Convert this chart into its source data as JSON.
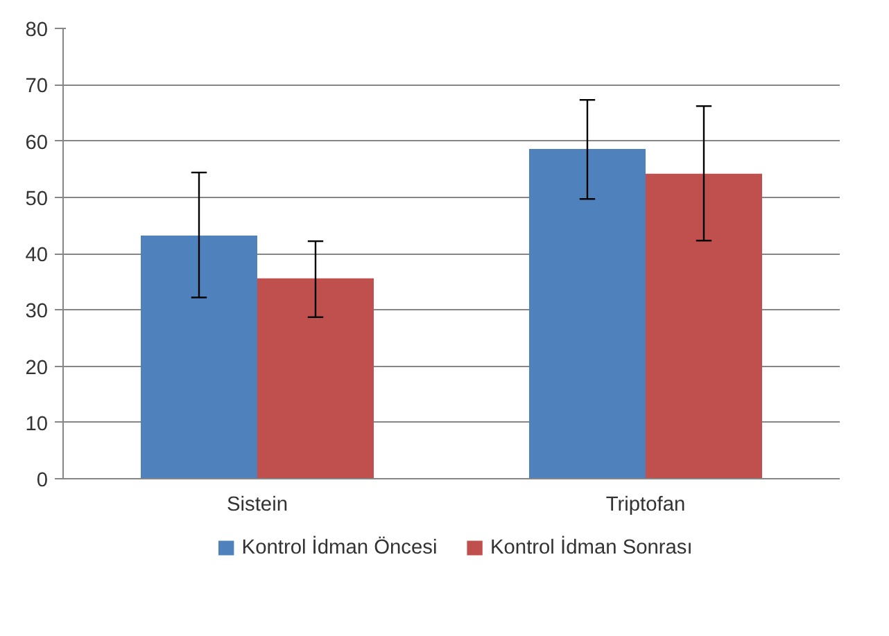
{
  "chart_data": {
    "type": "bar",
    "categories": [
      "Sistein",
      "Triptofan"
    ],
    "series": [
      {
        "name": "Kontrol İdman Öncesi",
        "color": "#4f81bd",
        "values": [
          43.2,
          58.6
        ],
        "errors": [
          [
            32.2,
            54.4
          ],
          [
            49.7,
            67.3
          ]
        ]
      },
      {
        "name": "Kontrol İdman Sonrası",
        "color": "#c0504d",
        "values": [
          35.6,
          54.2
        ],
        "errors": [
          [
            28.7,
            42.2
          ],
          [
            42.3,
            66.2
          ]
        ]
      }
    ],
    "ylim": [
      0,
      80
    ],
    "yticks": [
      0,
      10,
      20,
      30,
      40,
      50,
      60,
      70,
      80
    ],
    "grid": "y",
    "legend": "bottom"
  }
}
